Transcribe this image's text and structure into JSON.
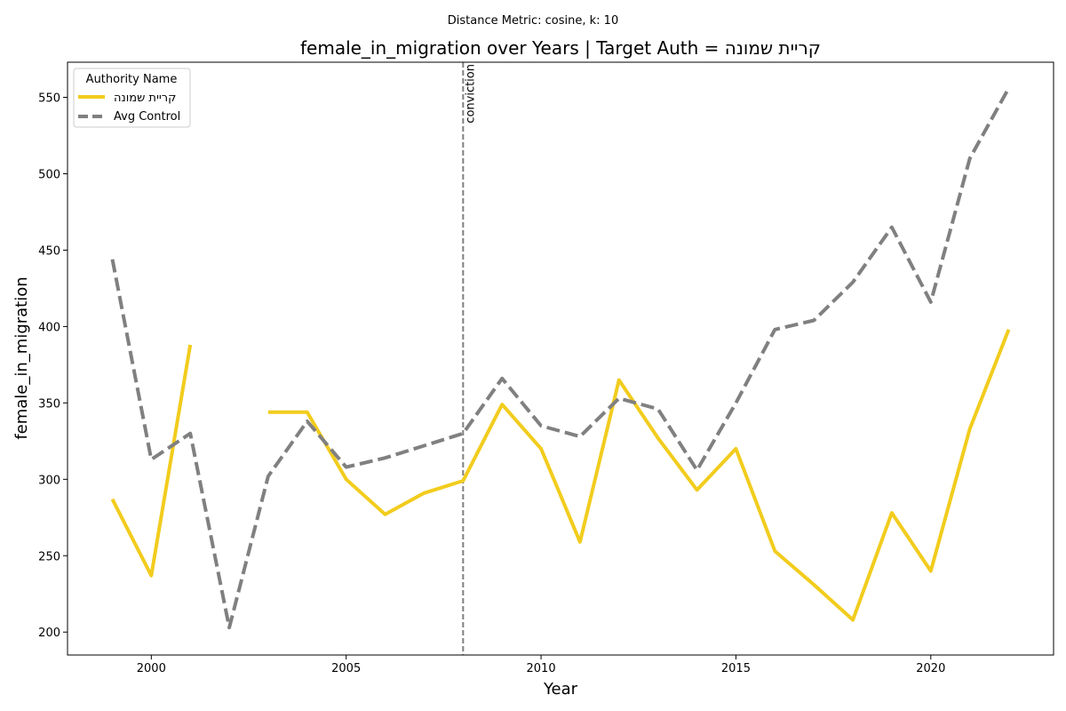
{
  "chart_data": {
    "type": "line",
    "suptitle": "Distance Metric: cosine, k: 10",
    "title": "female_in_migration over Years | Target Auth = קריית שמונה",
    "xlabel": "Year",
    "ylabel": "female_in_migration",
    "xlim": [
      1997.85,
      2023.15
    ],
    "ylim": [
      185,
      573
    ],
    "xticks": [
      2000,
      2005,
      2010,
      2015,
      2020
    ],
    "yticks": [
      200,
      250,
      300,
      350,
      400,
      450,
      500,
      550
    ],
    "grid": false,
    "legend": {
      "title": "Authority Name",
      "placement": "upper left"
    },
    "annotation": {
      "x": 2008,
      "label": "conviction",
      "color": "#808080"
    },
    "series": [
      {
        "name": "קריית שמונה",
        "color": "#f2cc1d",
        "style": "solid",
        "x": [
          1999,
          2000,
          2001,
          2002,
          2003,
          2004,
          2005,
          2006,
          2007,
          2008,
          2009,
          2010,
          2011,
          2012,
          2013,
          2014,
          2015,
          2016,
          2017,
          2018,
          2019,
          2020,
          2021,
          2022
        ],
        "y": [
          287,
          237,
          388,
          null,
          344,
          344,
          300,
          277,
          291,
          299,
          349,
          320,
          259,
          365,
          327,
          293,
          320,
          253,
          231,
          208,
          278,
          240,
          333,
          398
        ]
      },
      {
        "name": "Avg Control",
        "color": "#808080",
        "style": "dashed",
        "x": [
          1999,
          2000,
          2001,
          2002,
          2003,
          2004,
          2005,
          2006,
          2007,
          2008,
          2009,
          2010,
          2011,
          2012,
          2013,
          2014,
          2015,
          2016,
          2017,
          2018,
          2019,
          2020,
          2021,
          2022
        ],
        "y": [
          444,
          313,
          330,
          203,
          302,
          338,
          308,
          314,
          322,
          330,
          366,
          335,
          328,
          353,
          346,
          306,
          350,
          398,
          404,
          429,
          465,
          416,
          510,
          556
        ]
      }
    ]
  }
}
